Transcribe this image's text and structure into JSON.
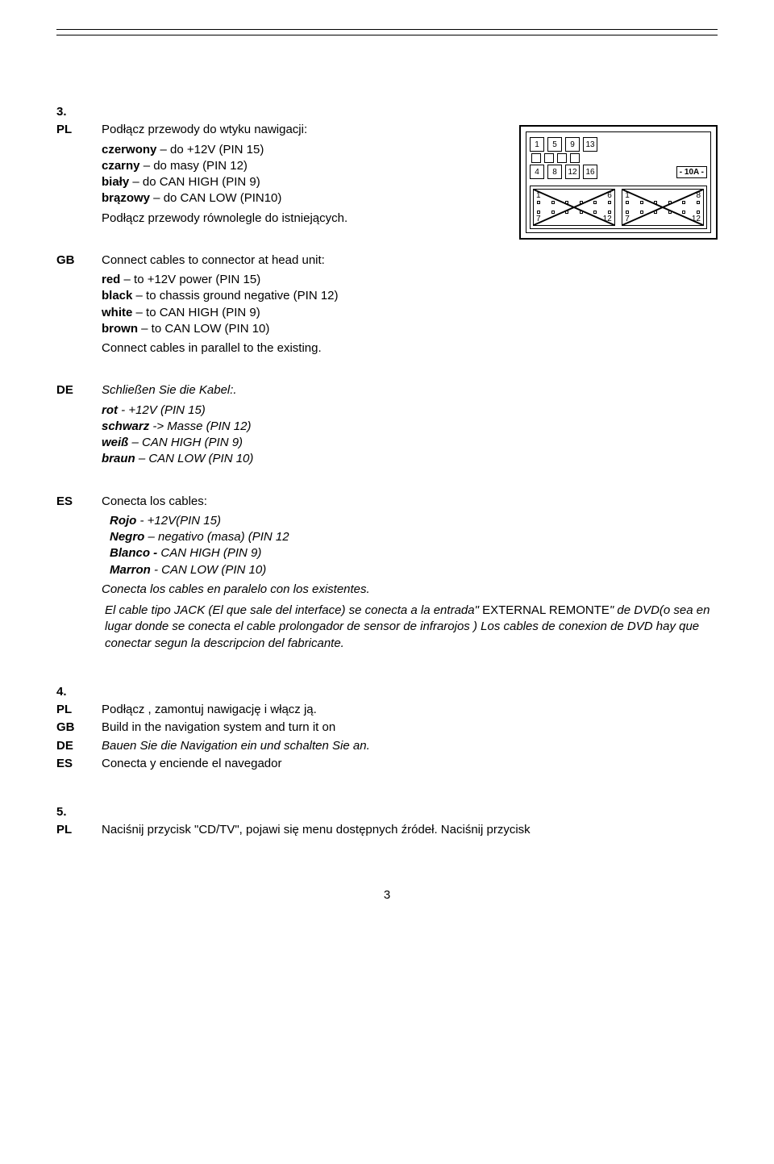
{
  "section3": {
    "num": "3.",
    "pl": {
      "code": "PL",
      "lead": "Podłącz przewody do wtyku nawigacji:",
      "lines": [
        [
          "czerwony",
          " – do +12V (PIN 15)"
        ],
        [
          "czarny",
          " – do masy (PIN 12)"
        ],
        [
          "biały",
          " – do CAN HIGH (PIN 9)"
        ],
        [
          "brązowy",
          " – do CAN LOW (PIN10)"
        ]
      ],
      "tail": "Podłącz przewody równolegle do istniejących."
    },
    "gb": {
      "code": "GB",
      "lead": "Connect cables to connector at head unit:",
      "lines": [
        [
          "red",
          " – to +12V power (PIN 15)"
        ],
        [
          "black",
          " – to chassis ground negative (PIN 12)"
        ],
        [
          "white",
          " – to CAN HIGH (PIN 9)"
        ],
        [
          "brown",
          " – to CAN LOW (PIN 10)"
        ]
      ],
      "tail": "Connect cables in parallel to the existing."
    },
    "de": {
      "code": "DE",
      "lead": "Schließen Sie die Kabel:.",
      "lines": [
        [
          "rot",
          " - +12V (PIN 15)"
        ],
        [
          "schwarz",
          " -> Masse (PIN 12)"
        ],
        [
          "weiß",
          " – CAN HIGH (PIN 9)"
        ],
        [
          "braun",
          " – CAN LOW (PIN 10)"
        ]
      ]
    },
    "es": {
      "code": "ES",
      "lead": "Conecta los cables:",
      "lines": [
        [
          "Rojo",
          " -  +12V(PIN 15)"
        ],
        [
          "Negro",
          " – negativo (masa) (PIN 12"
        ],
        [
          "Blanco -",
          " CAN HIGH (PIN 9)"
        ],
        [
          "Marron",
          " - CAN LOW (PIN 10)"
        ]
      ],
      "tail": "Conecta los cables en paralelo con los existentes.",
      "para": "El cable tipo JACK (El que sale del interface) se conecta a la entrada\" EXTERNAL REMONTE\" de DVD(o sea en lugar donde se conecta el cable prolongador de sensor de infrarojos ) Los cables de conexion de DVD hay que conectar segun la descripcion del fabricante."
    },
    "diagram": {
      "row1": [
        "1",
        "5",
        "9",
        "13"
      ],
      "row2": [
        "4",
        "8",
        "12",
        "16"
      ],
      "fuse": "- 10A -",
      "sub": [
        {
          "tl": "1",
          "tr": "6",
          "bl": "7",
          "br": "12"
        },
        {
          "tl": "1",
          "tr": "8",
          "bl": "7",
          "br": "12"
        }
      ]
    }
  },
  "section4": {
    "num": "4.",
    "rows": [
      {
        "code": "PL",
        "text": "Podłącz , zamontuj nawigację i włącz ją.",
        "italic": false
      },
      {
        "code": "GB",
        "text": "Build in the navigation system and turn it on",
        "italic": false
      },
      {
        "code": "DE",
        "text": "Bauen Sie die Navigation ein und schalten Sie an.",
        "italic": true
      },
      {
        "code": "ES",
        "text": "Conecta y enciende el navegador",
        "italic": false
      }
    ]
  },
  "section5": {
    "num": "5.",
    "pl": {
      "code": "PL",
      "text": "Naciśnij przycisk \"CD/TV\", pojawi się menu dostępnych źródeł. Naciśnij przycisk"
    }
  },
  "page": "3"
}
